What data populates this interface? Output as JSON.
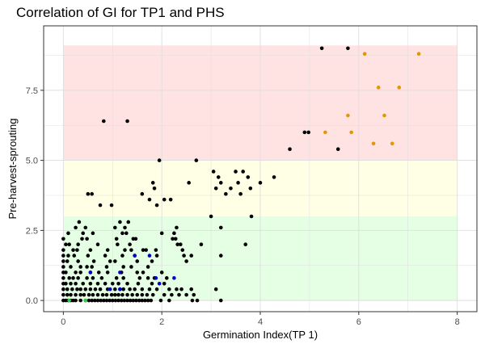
{
  "chart_data": {
    "type": "scatter",
    "title": "Correlation of GI for TP1 and PHS",
    "xlabel": "Germination Index(TP 1)",
    "ylabel": "Pre-harvest-sprouting",
    "xlim": [
      -0.4,
      8.4
    ],
    "ylim": [
      -0.4,
      9.8
    ],
    "x_ticks": [
      0,
      2,
      4,
      6,
      8
    ],
    "x_tick_labels": [
      "0",
      "2",
      "4",
      "6",
      "8"
    ],
    "y_ticks": [
      0,
      2.5,
      5,
      7.5
    ],
    "y_tick_labels": [
      "0.0",
      "2.5",
      "5.0",
      "7.5"
    ],
    "grid": true,
    "bands": [
      {
        "x": [
          0,
          8
        ],
        "y": [
          0,
          3
        ],
        "color": "#e5ffe5"
      },
      {
        "x": [
          0,
          8
        ],
        "y": [
          3,
          5
        ],
        "color": "#ffffe5"
      },
      {
        "x": [
          0,
          8
        ],
        "y": [
          5,
          9.1
        ],
        "color": "#ffe3e3"
      }
    ],
    "series": [
      {
        "color": "#000000",
        "points": [
          [
            5.25,
            9.0
          ],
          [
            5.78,
            9.0
          ],
          [
            0.82,
            6.4
          ],
          [
            1.3,
            6.4
          ],
          [
            4.9,
            6.0
          ],
          [
            4.98,
            6.0
          ],
          [
            4.6,
            5.4
          ],
          [
            5.58,
            5.4
          ],
          [
            1.95,
            5.0
          ],
          [
            2.7,
            5.0
          ],
          [
            3.05,
            4.6
          ],
          [
            3.5,
            4.6
          ],
          [
            3.65,
            4.6
          ],
          [
            3.15,
            4.4
          ],
          [
            3.75,
            4.4
          ],
          [
            4.28,
            4.4
          ],
          [
            3.2,
            4.2
          ],
          [
            3.55,
            4.2
          ],
          [
            4.0,
            4.2
          ],
          [
            1.82,
            4.2
          ],
          [
            2.55,
            4.2
          ],
          [
            3.1,
            4.0
          ],
          [
            3.4,
            4.0
          ],
          [
            3.8,
            4.0
          ],
          [
            1.85,
            4.0
          ],
          [
            3.3,
            3.8
          ],
          [
            3.6,
            3.8
          ],
          [
            1.6,
            3.8
          ],
          [
            0.5,
            3.8
          ],
          [
            0.58,
            3.8
          ],
          [
            1.75,
            3.6
          ],
          [
            2.05,
            3.6
          ],
          [
            2.18,
            3.6
          ],
          [
            0.75,
            3.4
          ],
          [
            0.98,
            3.4
          ],
          [
            1.9,
            3.4
          ],
          [
            3.0,
            3.0
          ],
          [
            3.82,
            3.0
          ],
          [
            0.32,
            2.8
          ],
          [
            1.15,
            2.8
          ],
          [
            1.32,
            2.8
          ],
          [
            0.25,
            2.6
          ],
          [
            0.45,
            2.6
          ],
          [
            1.05,
            2.6
          ],
          [
            1.25,
            2.6
          ],
          [
            2.3,
            2.6
          ],
          [
            3.2,
            2.6
          ],
          [
            0.1,
            2.4
          ],
          [
            0.4,
            2.4
          ],
          [
            0.6,
            2.4
          ],
          [
            1.2,
            2.4
          ],
          [
            1.28,
            2.4
          ],
          [
            2.0,
            2.4
          ],
          [
            2.25,
            2.4
          ],
          [
            0.0,
            2.2
          ],
          [
            0.38,
            2.2
          ],
          [
            0.48,
            2.2
          ],
          [
            1.08,
            2.2
          ],
          [
            1.42,
            2.2
          ],
          [
            1.47,
            2.2
          ],
          [
            2.22,
            2.2
          ],
          [
            2.28,
            2.2
          ],
          [
            0.05,
            2.0
          ],
          [
            0.12,
            2.0
          ],
          [
            0.3,
            2.0
          ],
          [
            0.7,
            2.0
          ],
          [
            1.1,
            2.0
          ],
          [
            1.35,
            2.0
          ],
          [
            2.32,
            2.0
          ],
          [
            2.38,
            2.0
          ],
          [
            2.8,
            2.0
          ],
          [
            3.7,
            2.0
          ],
          [
            0.0,
            1.8
          ],
          [
            0.2,
            1.8
          ],
          [
            0.28,
            1.8
          ],
          [
            0.55,
            1.8
          ],
          [
            0.9,
            1.8
          ],
          [
            1.25,
            1.8
          ],
          [
            1.38,
            1.8
          ],
          [
            1.62,
            1.8
          ],
          [
            1.68,
            1.8
          ],
          [
            1.88,
            1.8
          ],
          [
            2.42,
            1.8
          ],
          [
            0.0,
            1.6
          ],
          [
            0.1,
            1.6
          ],
          [
            0.22,
            1.6
          ],
          [
            0.5,
            1.6
          ],
          [
            0.85,
            1.6
          ],
          [
            1.2,
            1.6
          ],
          [
            1.45,
            1.6
          ],
          [
            1.9,
            1.6
          ],
          [
            2.45,
            1.6
          ],
          [
            2.6,
            1.6
          ],
          [
            3.2,
            1.6
          ],
          [
            0.0,
            1.4
          ],
          [
            0.08,
            1.4
          ],
          [
            0.3,
            1.4
          ],
          [
            0.62,
            1.4
          ],
          [
            0.95,
            1.4
          ],
          [
            1.05,
            1.4
          ],
          [
            1.5,
            1.4
          ],
          [
            1.8,
            1.4
          ],
          [
            2.5,
            1.4
          ],
          [
            0.0,
            1.2
          ],
          [
            0.15,
            1.2
          ],
          [
            0.35,
            1.2
          ],
          [
            0.48,
            1.2
          ],
          [
            0.58,
            1.2
          ],
          [
            0.88,
            1.2
          ],
          [
            1.22,
            1.2
          ],
          [
            1.38,
            1.2
          ],
          [
            1.72,
            1.2
          ],
          [
            0.0,
            1.0
          ],
          [
            0.05,
            1.0
          ],
          [
            0.25,
            1.0
          ],
          [
            0.35,
            1.0
          ],
          [
            0.55,
            1.0
          ],
          [
            0.72,
            1.0
          ],
          [
            0.9,
            1.0
          ],
          [
            1.18,
            1.0
          ],
          [
            1.5,
            1.0
          ],
          [
            1.62,
            1.0
          ],
          [
            2.0,
            1.0
          ],
          [
            0.0,
            0.8
          ],
          [
            0.12,
            0.8
          ],
          [
            0.2,
            0.8
          ],
          [
            0.3,
            0.8
          ],
          [
            0.48,
            0.8
          ],
          [
            0.6,
            0.8
          ],
          [
            0.78,
            0.8
          ],
          [
            1.08,
            0.8
          ],
          [
            1.22,
            0.8
          ],
          [
            1.55,
            0.8
          ],
          [
            1.72,
            0.8
          ],
          [
            1.85,
            0.8
          ],
          [
            2.1,
            0.8
          ],
          [
            0.0,
            0.6
          ],
          [
            0.05,
            0.6
          ],
          [
            0.15,
            0.6
          ],
          [
            0.25,
            0.6
          ],
          [
            0.4,
            0.6
          ],
          [
            0.55,
            0.6
          ],
          [
            0.7,
            0.6
          ],
          [
            0.85,
            0.6
          ],
          [
            1.0,
            0.6
          ],
          [
            1.12,
            0.6
          ],
          [
            1.3,
            0.6
          ],
          [
            1.52,
            0.6
          ],
          [
            1.8,
            0.6
          ],
          [
            2.05,
            0.6
          ],
          [
            0.0,
            0.4
          ],
          [
            0.08,
            0.4
          ],
          [
            0.18,
            0.4
          ],
          [
            0.28,
            0.4
          ],
          [
            0.35,
            0.4
          ],
          [
            0.45,
            0.4
          ],
          [
            0.55,
            0.4
          ],
          [
            0.65,
            0.4
          ],
          [
            0.75,
            0.4
          ],
          [
            0.9,
            0.4
          ],
          [
            1.05,
            0.4
          ],
          [
            1.15,
            0.4
          ],
          [
            1.22,
            0.4
          ],
          [
            1.35,
            0.4
          ],
          [
            1.45,
            0.4
          ],
          [
            1.6,
            0.4
          ],
          [
            1.75,
            0.4
          ],
          [
            1.9,
            0.4
          ],
          [
            2.15,
            0.4
          ],
          [
            2.3,
            0.4
          ],
          [
            2.4,
            0.4
          ],
          [
            2.6,
            0.4
          ],
          [
            3.1,
            0.4
          ],
          [
            0.0,
            0.2
          ],
          [
            0.08,
            0.2
          ],
          [
            0.15,
            0.2
          ],
          [
            0.25,
            0.2
          ],
          [
            0.35,
            0.2
          ],
          [
            0.42,
            0.2
          ],
          [
            0.52,
            0.2
          ],
          [
            0.6,
            0.2
          ],
          [
            0.7,
            0.2
          ],
          [
            0.8,
            0.2
          ],
          [
            0.88,
            0.2
          ],
          [
            0.98,
            0.2
          ],
          [
            1.05,
            0.2
          ],
          [
            1.12,
            0.2
          ],
          [
            1.2,
            0.2
          ],
          [
            1.3,
            0.2
          ],
          [
            1.4,
            0.2
          ],
          [
            1.5,
            0.2
          ],
          [
            1.6,
            0.2
          ],
          [
            1.7,
            0.2
          ],
          [
            1.82,
            0.2
          ],
          [
            2.05,
            0.2
          ],
          [
            2.2,
            0.2
          ],
          [
            2.35,
            0.2
          ],
          [
            2.5,
            0.2
          ],
          [
            2.65,
            0.2
          ],
          [
            0.0,
            0.0
          ],
          [
            0.05,
            0.0
          ],
          [
            0.1,
            0.0
          ],
          [
            0.15,
            0.0
          ],
          [
            0.2,
            0.0
          ],
          [
            0.25,
            0.0
          ],
          [
            0.35,
            0.0
          ],
          [
            0.45,
            0.0
          ],
          [
            0.52,
            0.0
          ],
          [
            0.58,
            0.0
          ],
          [
            0.64,
            0.0
          ],
          [
            0.7,
            0.0
          ],
          [
            0.76,
            0.0
          ],
          [
            0.82,
            0.0
          ],
          [
            0.88,
            0.0
          ],
          [
            0.94,
            0.0
          ],
          [
            1.0,
            0.0
          ],
          [
            1.06,
            0.0
          ],
          [
            1.12,
            0.0
          ],
          [
            1.18,
            0.0
          ],
          [
            1.24,
            0.0
          ],
          [
            1.3,
            0.0
          ],
          [
            1.36,
            0.0
          ],
          [
            1.42,
            0.0
          ],
          [
            1.48,
            0.0
          ],
          [
            1.54,
            0.0
          ],
          [
            1.6,
            0.0
          ],
          [
            1.66,
            0.0
          ],
          [
            1.72,
            0.0
          ],
          [
            1.78,
            0.0
          ],
          [
            1.98,
            0.0
          ],
          [
            2.15,
            0.0
          ],
          [
            2.62,
            0.0
          ],
          [
            2.72,
            0.0
          ],
          [
            3.2,
            0.0
          ]
        ]
      },
      {
        "color": "#0000cd",
        "points": [
          [
            0.55,
            1.0
          ],
          [
            1.15,
            1.0
          ],
          [
            1.45,
            1.6
          ],
          [
            1.75,
            1.6
          ],
          [
            0.95,
            0.4
          ],
          [
            1.15,
            0.4
          ],
          [
            1.88,
            0.8
          ],
          [
            2.25,
            0.8
          ],
          [
            1.95,
            0.6
          ]
        ]
      },
      {
        "color": "#2ecc40",
        "points": [
          [
            0.12,
            0.0
          ],
          [
            0.45,
            0.0
          ]
        ]
      },
      {
        "color": "#e69500",
        "points": [
          [
            6.12,
            8.8
          ],
          [
            7.22,
            8.8
          ],
          [
            6.4,
            7.6
          ],
          [
            6.82,
            7.6
          ],
          [
            5.78,
            6.6
          ],
          [
            6.52,
            6.6
          ],
          [
            5.32,
            6.0
          ],
          [
            5.85,
            6.0
          ],
          [
            6.3,
            5.6
          ],
          [
            6.68,
            5.6
          ]
        ]
      }
    ]
  }
}
